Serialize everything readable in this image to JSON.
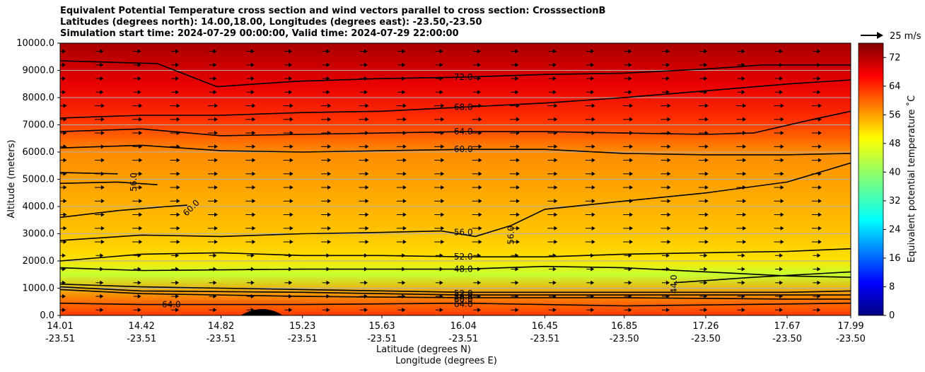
{
  "chart_data": {
    "type": "heatmap",
    "title": [
      "Equivalent Potential Temperature cross section and wind vectors parallel to cross section: CrosssectionB",
      "Latitudes (degrees north): 14.00,18.00, Longitudes (degrees east): -23.50,-23.50",
      "Simulation start time: 2024-07-29 00:00:00, Valid time: 2024-07-29 22:00:00"
    ],
    "ylabel": "Altitude (meters)",
    "xlabel": [
      "Latitude (degrees N)",
      "Longitude (degrees E)"
    ],
    "ylim": [
      0,
      10000
    ],
    "y_ticks": [
      "0.0",
      "1000.0",
      "2000.0",
      "3000.0",
      "4000.0",
      "5000.0",
      "6000.0",
      "7000.0",
      "8000.0",
      "9000.0",
      "10000.0"
    ],
    "y_tick_values": [
      0,
      1000,
      2000,
      3000,
      4000,
      5000,
      6000,
      7000,
      8000,
      9000,
      10000
    ],
    "x_tick_lat": [
      "14.01",
      "14.42",
      "14.82",
      "15.23",
      "15.63",
      "16.04",
      "16.45",
      "16.85",
      "17.26",
      "17.67",
      "17.99"
    ],
    "x_tick_lon": [
      "-23.51",
      "-23.51",
      "-23.51",
      "-23.51",
      "-23.51",
      "-23.51",
      "-23.51",
      "-23.50",
      "-23.50",
      "-23.50",
      "-23.50"
    ],
    "xlim": [
      14.01,
      17.99
    ],
    "grid": "horizontal",
    "colorbar": {
      "label": "Equivalent potential temperature ˚C",
      "ticks": [
        "0",
        "8",
        "16",
        "24",
        "32",
        "40",
        "48",
        "56",
        "64",
        "72"
      ],
      "range": [
        0,
        76
      ],
      "colormap": "jet"
    },
    "wind_key": "25 m/s",
    "contour_labels": [
      "72.0",
      "68.0",
      "64.0",
      "60.0",
      "56.0",
      "52.0",
      "48.0",
      "44.0",
      "60.0",
      "56.0",
      "56.0",
      "64.0",
      "52.0",
      "56.0",
      "60.0",
      "64.0"
    ],
    "contours": [
      {
        "level": 72,
        "points": [
          [
            14.01,
            9350
          ],
          [
            14.5,
            9250
          ],
          [
            14.8,
            8400
          ],
          [
            15.2,
            8600
          ],
          [
            15.63,
            8700
          ],
          [
            16.04,
            8750
          ],
          [
            16.45,
            8850
          ],
          [
            16.85,
            8900
          ],
          [
            17.26,
            9050
          ],
          [
            17.55,
            9200
          ],
          [
            17.99,
            9200
          ]
        ]
      },
      {
        "level": 68,
        "points": [
          [
            14.01,
            7250
          ],
          [
            14.42,
            7350
          ],
          [
            14.82,
            7350
          ],
          [
            15.23,
            7450
          ],
          [
            15.63,
            7500
          ],
          [
            16.04,
            7650
          ],
          [
            16.45,
            7800
          ],
          [
            16.85,
            8000
          ],
          [
            17.26,
            8250
          ],
          [
            17.67,
            8500
          ],
          [
            17.99,
            8650
          ]
        ]
      },
      {
        "level": 64,
        "points": [
          [
            14.01,
            6750
          ],
          [
            14.42,
            6850
          ],
          [
            14.82,
            6600
          ],
          [
            15.23,
            6650
          ],
          [
            15.63,
            6700
          ],
          [
            16.04,
            6750
          ],
          [
            16.45,
            6750
          ],
          [
            16.85,
            6700
          ],
          [
            17.26,
            6650
          ],
          [
            17.5,
            6700
          ],
          [
            17.8,
            7200
          ],
          [
            17.99,
            7500
          ]
        ]
      },
      {
        "level": 60,
        "points": [
          [
            14.01,
            6150
          ],
          [
            14.42,
            6250
          ],
          [
            14.82,
            6050
          ],
          [
            15.23,
            6000
          ],
          [
            15.63,
            6050
          ],
          [
            16.04,
            6100
          ],
          [
            16.45,
            6100
          ],
          [
            16.85,
            5950
          ],
          [
            17.26,
            5900
          ],
          [
            17.67,
            5900
          ],
          [
            17.99,
            5950
          ]
        ]
      },
      {
        "level": 56,
        "points": [
          [
            14.01,
            4850
          ],
          [
            14.3,
            4900
          ],
          [
            14.5,
            4800
          ]
        ]
      },
      {
        "level": 56,
        "points": [
          [
            14.01,
            5250
          ],
          [
            14.3,
            5200
          ]
        ]
      },
      {
        "level": 60,
        "points": [
          [
            14.01,
            3600
          ],
          [
            14.3,
            3850
          ],
          [
            14.55,
            4000
          ],
          [
            14.65,
            4050
          ]
        ]
      },
      {
        "level": 56,
        "points": [
          [
            14.01,
            2750
          ],
          [
            14.42,
            2950
          ],
          [
            14.82,
            2900
          ],
          [
            15.23,
            3000
          ],
          [
            15.63,
            3050
          ],
          [
            15.93,
            3100
          ],
          [
            16.1,
            2900
          ],
          [
            16.28,
            3300
          ],
          [
            16.45,
            3900
          ],
          [
            16.85,
            4200
          ],
          [
            17.26,
            4500
          ],
          [
            17.67,
            4900
          ],
          [
            17.99,
            5600
          ]
        ]
      },
      {
        "level": 52,
        "points": [
          [
            14.01,
            2000
          ],
          [
            14.42,
            2250
          ],
          [
            14.82,
            2300
          ],
          [
            15.23,
            2200
          ],
          [
            15.63,
            2200
          ],
          [
            16.04,
            2150
          ],
          [
            16.45,
            2150
          ],
          [
            16.85,
            2250
          ],
          [
            17.26,
            2300
          ],
          [
            17.67,
            2350
          ],
          [
            17.99,
            2450
          ]
        ]
      },
      {
        "level": 48,
        "points": [
          [
            14.01,
            1750
          ],
          [
            14.42,
            1650
          ],
          [
            15.23,
            1700
          ],
          [
            16.04,
            1700
          ],
          [
            16.45,
            1800
          ],
          [
            16.85,
            1750
          ],
          [
            17.26,
            1600
          ],
          [
            17.67,
            1450
          ],
          [
            17.99,
            1400
          ]
        ]
      },
      {
        "level": 44,
        "points": [
          [
            17.1,
            1200
          ],
          [
            17.5,
            1400
          ],
          [
            17.99,
            1600
          ]
        ]
      },
      {
        "level": 52,
        "points": [
          [
            14.01,
            1150
          ],
          [
            14.42,
            1050
          ],
          [
            15.23,
            950
          ],
          [
            16.04,
            850
          ],
          [
            16.85,
            850
          ],
          [
            17.67,
            850
          ],
          [
            17.99,
            900
          ]
        ]
      },
      {
        "level": 56,
        "points": [
          [
            14.01,
            1050
          ],
          [
            14.42,
            900
          ],
          [
            15.23,
            850
          ],
          [
            16.04,
            750
          ],
          [
            16.85,
            750
          ],
          [
            17.67,
            750
          ],
          [
            17.99,
            750
          ]
        ]
      },
      {
        "level": 60,
        "points": [
          [
            14.01,
            950
          ],
          [
            14.42,
            800
          ],
          [
            15.23,
            700
          ],
          [
            16.04,
            650
          ],
          [
            16.85,
            650
          ],
          [
            17.67,
            600
          ],
          [
            17.99,
            600
          ]
        ]
      },
      {
        "level": 64,
        "points": [
          [
            14.01,
            450
          ],
          [
            14.42,
            400
          ],
          [
            15.23,
            400
          ],
          [
            16.04,
            450
          ],
          [
            16.85,
            350
          ],
          [
            17.99,
            450
          ]
        ]
      }
    ]
  }
}
